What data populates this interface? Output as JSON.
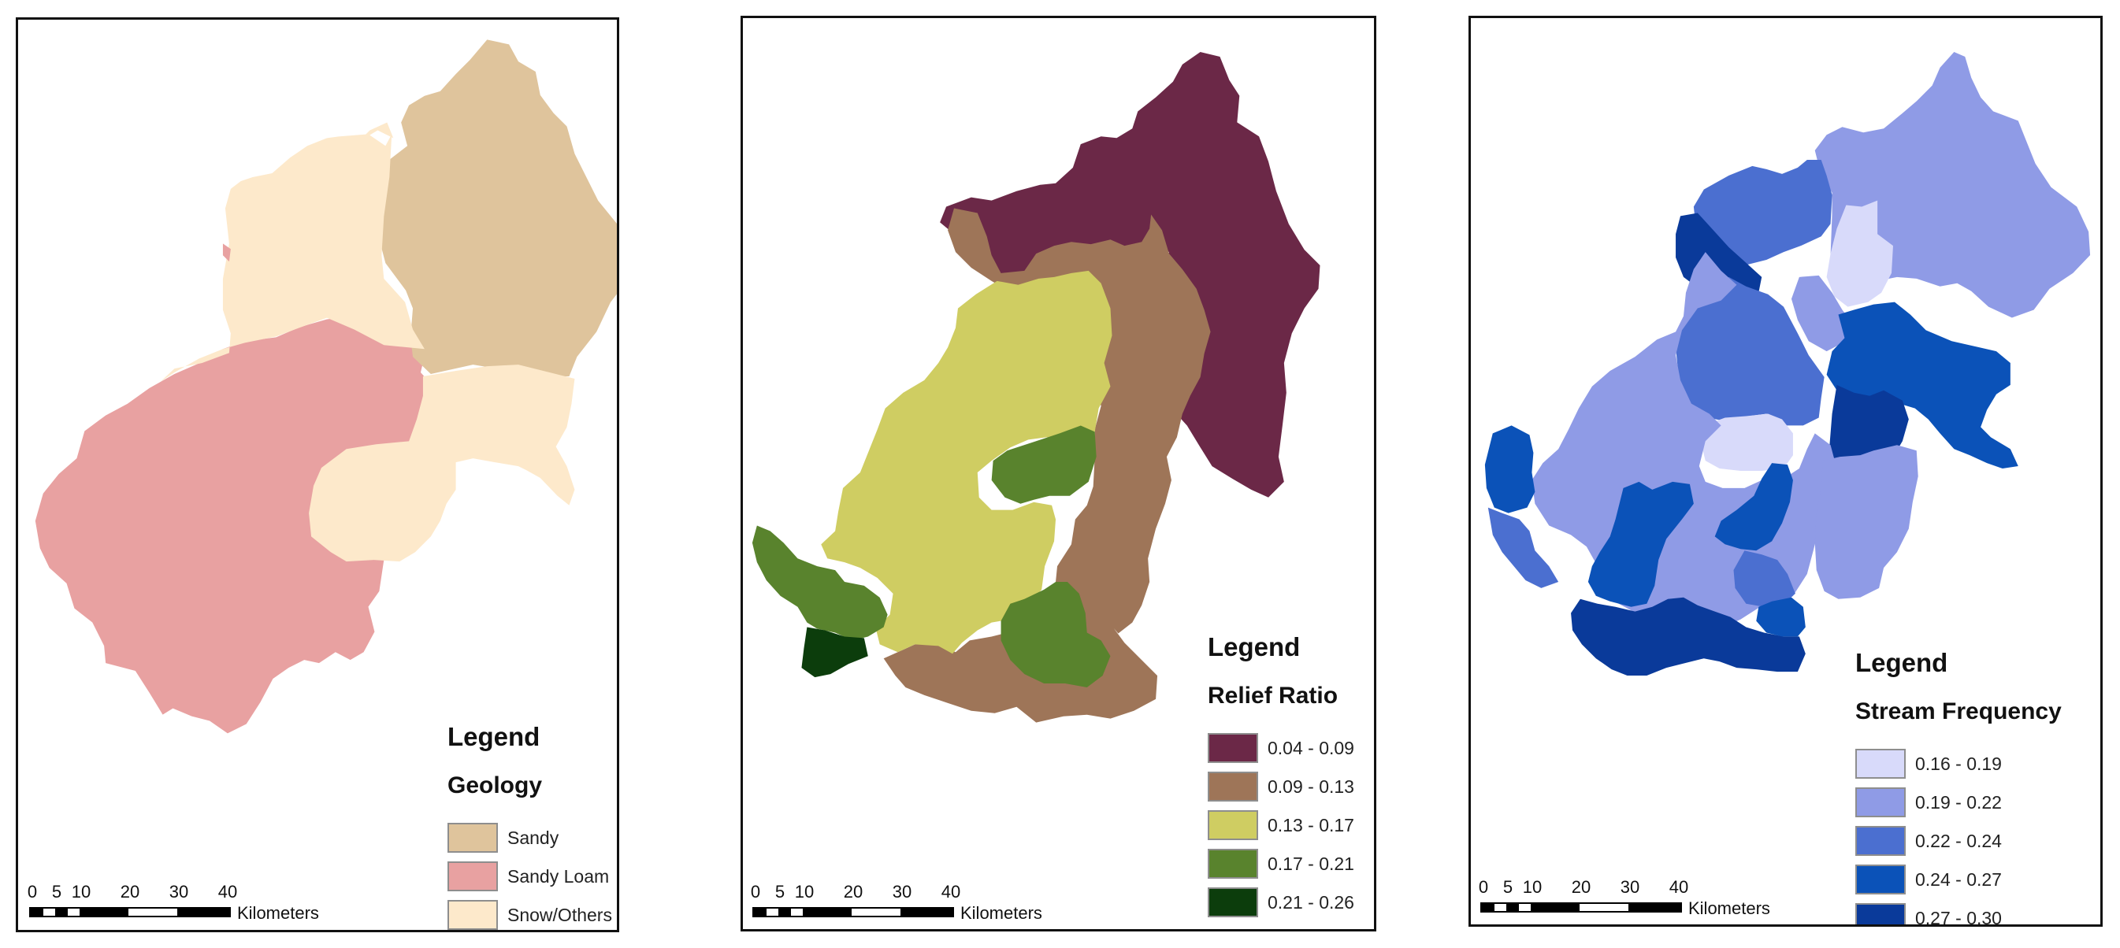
{
  "maps": [
    {
      "legend_title": "Legend",
      "layer_name": "Geology",
      "classes": [
        {
          "label": "Sandy",
          "color": "#dfc49c"
        },
        {
          "label": "Sandy Loam",
          "color": "#e8a1a1"
        },
        {
          "label": "Snow/Others",
          "color": "#fde9cb"
        }
      ],
      "scale": {
        "ticks": [
          "0",
          "5",
          "10",
          "20",
          "30",
          "40"
        ],
        "unit": "Kilometers"
      }
    },
    {
      "legend_title": "Legend",
      "layer_name": "Relief Ratio",
      "classes": [
        {
          "label": "0.04 - 0.09",
          "color": "#6b2847"
        },
        {
          "label": "0.09 - 0.13",
          "color": "#9e7558"
        },
        {
          "label": "0.13 - 0.17",
          "color": "#cfcd62"
        },
        {
          "label": "0.17 - 0.21",
          "color": "#59832d"
        },
        {
          "label": "0.21 - 0.26",
          "color": "#0c3d0c"
        }
      ],
      "scale": {
        "ticks": [
          "0",
          "5",
          "10",
          "20",
          "30",
          "40"
        ],
        "unit": "Kilometers"
      }
    },
    {
      "legend_title": "Legend",
      "layer_name": "Stream Frequency",
      "classes": [
        {
          "label": "0.16 - 0.19",
          "color": "#d8dafa"
        },
        {
          "label": "0.19 - 0.22",
          "color": "#8f9be6"
        },
        {
          "label": "0.22 - 0.24",
          "color": "#4b6fd0"
        },
        {
          "label": "0.24 - 0.27",
          "color": "#0b52b8"
        },
        {
          "label": "0.27 - 0.30",
          "color": "#0a3a9a"
        }
      ],
      "scale": {
        "ticks": [
          "0",
          "5",
          "10",
          "20",
          "30",
          "40"
        ],
        "unit": "Kilometers"
      }
    }
  ]
}
